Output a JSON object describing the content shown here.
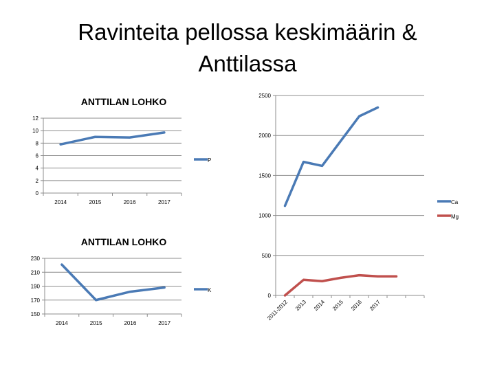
{
  "slide": {
    "title_line1": "Ravinteita pellossa keskimäärin &",
    "title_line2": "Anttilassa"
  },
  "chart_data": [
    {
      "id": "p_chart",
      "type": "line",
      "title": "ANTTILAN LOHKO",
      "categories": [
        "2014",
        "2015",
        "2016",
        "2017"
      ],
      "series": [
        {
          "name": "P",
          "values": [
            7.8,
            9.0,
            8.9,
            9.7
          ],
          "color": "#4a7ab5"
        }
      ],
      "ylim": [
        0,
        12
      ],
      "yticks": [
        0,
        2,
        4,
        6,
        8,
        10,
        12
      ],
      "grid": true,
      "legend": "right"
    },
    {
      "id": "k_chart",
      "type": "line",
      "title": "ANTTILAN LOHKO",
      "categories": [
        "2014",
        "2015",
        "2016",
        "2017"
      ],
      "series": [
        {
          "name": "K",
          "values": [
            221,
            170,
            182,
            188
          ],
          "color": "#4a7ab5"
        }
      ],
      "ylim": [
        150,
        230
      ],
      "yticks": [
        150,
        170,
        190,
        210,
        230
      ],
      "grid": true,
      "legend": "right"
    },
    {
      "id": "camg_chart",
      "type": "line",
      "title": "",
      "categories": [
        "2011-2012",
        "2013",
        "2014",
        "2015",
        "2016",
        "2017",
        "",
        ""
      ],
      "series": [
        {
          "name": "Ca",
          "values": [
            1120,
            1670,
            1620,
            1930,
            2240,
            2350,
            null,
            null
          ],
          "color": "#4a7ab5"
        },
        {
          "name": "Mg",
          "values": [
            0,
            195,
            178,
            220,
            252,
            238,
            238,
            null
          ],
          "color": "#c0504d"
        }
      ],
      "ylim": [
        0,
        2500
      ],
      "yticks": [
        0,
        500,
        1000,
        1500,
        2000,
        2500
      ],
      "grid": true,
      "legend": "right",
      "xlabel_rotation": -45
    }
  ]
}
